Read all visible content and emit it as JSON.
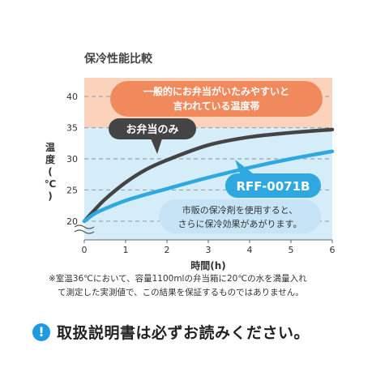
{
  "chart_data": {
    "type": "line",
    "title": "保冷性能比較",
    "xlabel": "時間(h)",
    "ylabel": "温度(℃)",
    "xlim": [
      0,
      6
    ],
    "ylim": [
      17,
      43
    ],
    "x_ticks": [
      0,
      1,
      2,
      3,
      4,
      5,
      6
    ],
    "y_ticks": [
      20,
      25,
      30,
      35,
      40
    ],
    "grid": true,
    "bands": [
      {
        "name": "一般的にお弁当がいたみやすいと言われている温度帯",
        "range": [
          35,
          43
        ],
        "color": "#fbd3bd"
      },
      {
        "name": "",
        "range": [
          17,
          35
        ],
        "color": "#d5ecf9"
      }
    ],
    "series": [
      {
        "name": "お弁当のみ",
        "color": "#444444",
        "x": [
          0,
          0.25,
          0.5,
          1,
          1.5,
          2,
          3,
          4,
          5,
          6
        ],
        "y": [
          20,
          21.8,
          23.5,
          26.2,
          28.3,
          29.8,
          32.2,
          33.5,
          34.2,
          34.7
        ]
      },
      {
        "name": "RFF-0071B",
        "color": "#2fa8e0",
        "x": [
          0,
          0.25,
          0.5,
          1,
          1.5,
          2,
          3,
          4,
          5,
          6
        ],
        "y": [
          20,
          21.2,
          22.0,
          23.3,
          24.3,
          25.2,
          27.0,
          28.6,
          30.0,
          31.2
        ]
      }
    ],
    "annotations": {
      "danger_line1": "一般的にお弁当がいたみやすいと",
      "danger_line2": "言われている温度帯",
      "cooler_line1": "市販の保冷剤を使用すると、",
      "cooler_line2": "さらに保冷効果があがります。",
      "label_bento": "お弁当のみ",
      "label_rff": "RFF-0071B"
    }
  },
  "note_line1": "※室温36℃において、容量1100mlの弁当箱に20℃の水を満量入れ",
  "note_line2": "て測定した実測値で、この結果を保証するものではありません。",
  "warning_icon": "exclamation-icon",
  "warning_text": "取扱説明書は必ずお読みください。",
  "colors": {
    "danger_band": "#fbd3bd",
    "safe_band": "#d5ecf9",
    "danger_bubble": "#f08a5d",
    "bento_bubble": "#444444",
    "rff_bubble": "#2fa8e0",
    "accent": "#1e9be0"
  }
}
